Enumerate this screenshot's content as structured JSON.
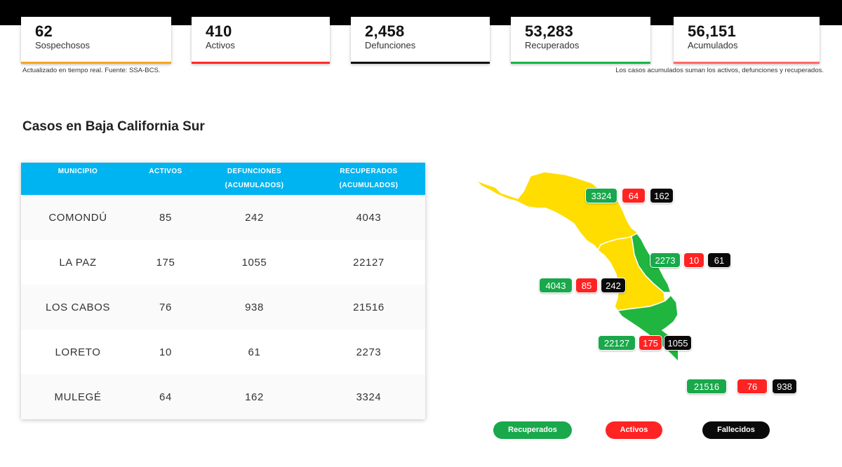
{
  "stats": [
    {
      "value": "62",
      "label": "Sospechosos",
      "color": "#f5a623"
    },
    {
      "value": "410",
      "label": "Activos",
      "color": "#ff2a2a"
    },
    {
      "value": "2,458",
      "label": "Defunciones",
      "color": "#111111"
    },
    {
      "value": "53,283",
      "label": "Recuperados",
      "color": "#19b54a"
    },
    {
      "value": "56,151",
      "label": "Acumulados",
      "color": "#ff6a6a"
    }
  ],
  "footnote_left": "Actualizado en tiempo real. Fuente: SSA-BCS.",
  "footnote_right": "Los casos acumulados suman los activos, defunciones y recuperados.",
  "section_title": "Casos en Baja California Sur",
  "table": {
    "header": {
      "municipio": "MUNICIPIO",
      "activos": "ACTIVOS",
      "defunciones_1": "DEFUNCIONES",
      "defunciones_2": "(ACUMULADOS)",
      "recuperados_1": "RECUPERADOS",
      "recuperados_2": "(ACUMULADOS)"
    },
    "rows": [
      {
        "municipio": "COMONDÚ",
        "activos": "85",
        "defunciones": "242",
        "recuperados": "4043"
      },
      {
        "municipio": "LA PAZ",
        "activos": "175",
        "defunciones": "1055",
        "recuperados": "22127"
      },
      {
        "municipio": "LOS CABOS",
        "activos": "76",
        "defunciones": "938",
        "recuperados": "21516"
      },
      {
        "municipio": "LORETO",
        "activos": "10",
        "defunciones": "61",
        "recuperados": "2273"
      },
      {
        "municipio": "MULEGÉ",
        "activos": "64",
        "defunciones": "162",
        "recuperados": "3324"
      }
    ]
  },
  "map": {
    "colors": {
      "yellow": "#ffdd00",
      "green": "#1fb53f"
    },
    "badges": {
      "mulege": {
        "recuperados": "3324",
        "activos": "64",
        "fallecidos": "162"
      },
      "loreto": {
        "recuperados": "2273",
        "activos": "10",
        "fallecidos": "61"
      },
      "comondu": {
        "recuperados": "4043",
        "activos": "85",
        "fallecidos": "242"
      },
      "la_paz": {
        "recuperados": "22127",
        "activos": "175",
        "fallecidos": "1055"
      },
      "los_cabos": {
        "recuperados": "21516",
        "activos": "76",
        "fallecidos": "938"
      }
    }
  },
  "legend": {
    "recuperados": "Recuperados",
    "activos": "Activos",
    "fallecidos": "Fallecidos"
  }
}
